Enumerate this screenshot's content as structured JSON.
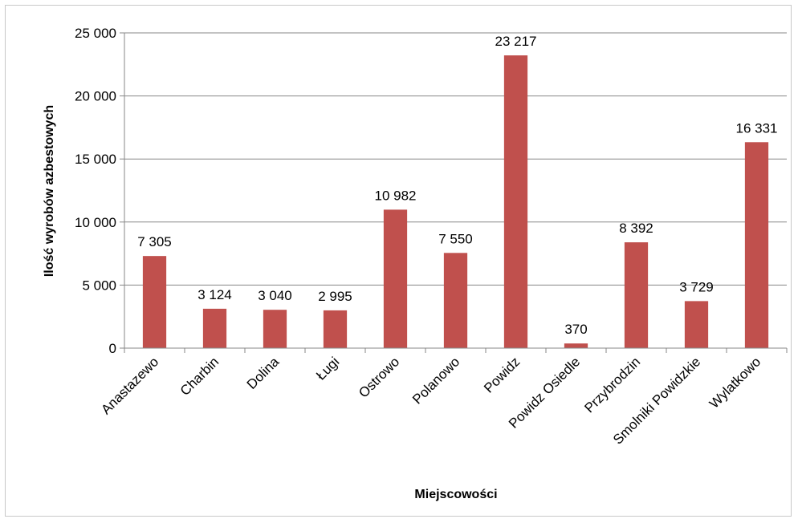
{
  "chart_data": {
    "type": "bar",
    "categories": [
      "Anastazewo",
      "Charbin",
      "Dolina",
      "Ługi",
      "Ostrowo",
      "Polanowo",
      "Powidz",
      "Powidz Osiedle",
      "Przybrodzin",
      "Smolniki Powidzkie",
      "Wylatkowo"
    ],
    "values": [
      7305,
      3124,
      3040,
      2995,
      10982,
      7550,
      23217,
      370,
      8392,
      3729,
      16331
    ],
    "data_labels": [
      "7 305",
      "3 124",
      "3 040",
      "2 995",
      "10 982",
      "7 550",
      "23 217",
      "370",
      "8 392",
      "3 729",
      "16 331"
    ],
    "title": "",
    "xlabel": "Miejscowości",
    "ylabel": "Ilość wyrobów azbestowych",
    "ylim": [
      0,
      25000
    ],
    "yticks": [
      0,
      5000,
      10000,
      15000,
      20000,
      25000
    ],
    "ytick_labels": [
      "0",
      "5 000",
      "10 000",
      "15 000",
      "20 000",
      "25 000"
    ],
    "grid": true,
    "legend": "none",
    "colors": {
      "bar": "#C0504D",
      "grid": "#878787",
      "axis": "#878787"
    }
  }
}
